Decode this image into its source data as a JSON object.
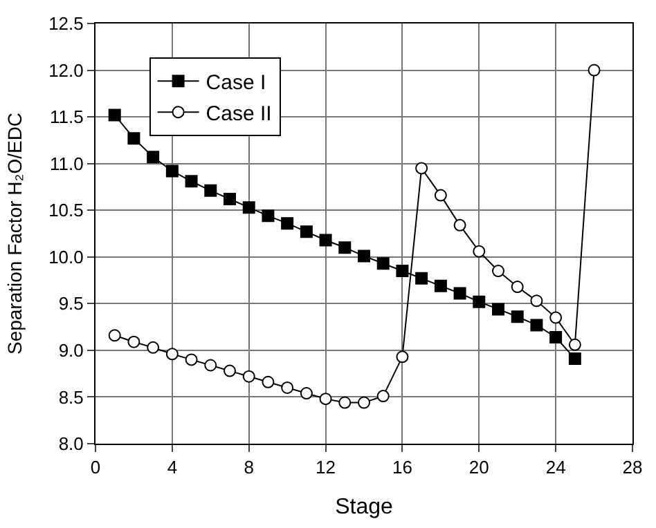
{
  "chart_data": {
    "type": "line",
    "xlabel": "Stage",
    "ylabel": "Separation Factor H₂O/EDC",
    "xlim": [
      0,
      28
    ],
    "xticks": [
      0,
      4,
      8,
      12,
      16,
      20,
      24,
      28
    ],
    "ylim": [
      8.0,
      12.5
    ],
    "yticks": [
      {
        "value": 8.0,
        "label": "8.0"
      },
      {
        "value": 8.5,
        "label": "8.5"
      },
      {
        "value": 9.0,
        "label": "9.0"
      },
      {
        "value": 9.5,
        "label": "9.5"
      },
      {
        "value": 10.0,
        "label": "10.0"
      },
      {
        "value": 10.5,
        "label": "10.5"
      },
      {
        "value": 11.0,
        "label": "11.0"
      },
      {
        "value": 11.5,
        "label": "11.5"
      },
      {
        "value": 12.0,
        "label": "12.0"
      },
      {
        "value": 12.5,
        "label": "12.5"
      }
    ],
    "grid": true,
    "legend": "top left",
    "series": [
      {
        "name": "Case I",
        "color": "#000000",
        "marker": "square",
        "x": [
          1,
          2,
          3,
          4,
          5,
          6,
          7,
          8,
          9,
          10,
          11,
          12,
          13,
          14,
          15,
          16,
          17,
          18,
          19,
          20,
          21,
          22,
          23,
          24,
          25
        ],
        "values": [
          11.52,
          11.27,
          11.07,
          10.92,
          10.81,
          10.71,
          10.62,
          10.53,
          10.44,
          10.36,
          10.27,
          10.18,
          10.1,
          10.01,
          9.93,
          9.85,
          9.77,
          9.69,
          9.61,
          9.52,
          9.44,
          9.36,
          9.27,
          9.14,
          8.91
        ]
      },
      {
        "name": "Case II",
        "color": "#000000",
        "marker": "circle",
        "x": [
          1,
          2,
          3,
          4,
          5,
          6,
          7,
          8,
          9,
          10,
          11,
          12,
          13,
          14,
          15,
          16,
          17,
          18,
          19,
          20,
          21,
          22,
          23,
          24,
          25,
          26
        ],
        "values": [
          9.16,
          9.09,
          9.03,
          8.96,
          8.9,
          8.84,
          8.78,
          8.72,
          8.66,
          8.6,
          8.54,
          8.48,
          8.44,
          8.44,
          8.51,
          8.93,
          10.95,
          10.66,
          10.34,
          10.06,
          9.85,
          9.68,
          9.53,
          9.35,
          9.06,
          12.0
        ]
      }
    ]
  }
}
